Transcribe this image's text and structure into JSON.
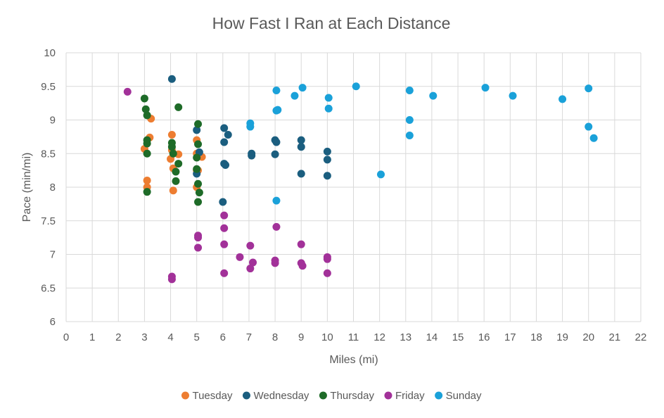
{
  "chart_data": {
    "type": "scatter",
    "title": "How Fast I Ran at Each Distance",
    "xlabel": "Miles (mi)",
    "ylabel": "Pace (min/mi)",
    "xlim": [
      0,
      22
    ],
    "ylim": [
      6,
      10
    ],
    "x_ticks": [
      "0",
      "1",
      "2",
      "3",
      "4",
      "5",
      "6",
      "7",
      "8",
      "9",
      "10",
      "11",
      "12",
      "13",
      "14",
      "15",
      "16",
      "17",
      "18",
      "19",
      "20",
      "21",
      "22"
    ],
    "y_ticks": [
      "6",
      "6.5",
      "7",
      "7.5",
      "8",
      "8.5",
      "9",
      "9.5",
      "10"
    ],
    "grid": true,
    "legend_position": "bottom",
    "series": [
      {
        "name": "Tuesday",
        "color": "#ED7D31",
        "points": [
          [
            3.0,
            8.57
          ],
          [
            3.1,
            8.1
          ],
          [
            3.1,
            8.0
          ],
          [
            3.2,
            8.74
          ],
          [
            3.25,
            9.02
          ],
          [
            4.05,
            8.78
          ],
          [
            4.05,
            8.55
          ],
          [
            4.0,
            8.42
          ],
          [
            4.1,
            8.28
          ],
          [
            4.1,
            7.95
          ],
          [
            4.3,
            8.49
          ],
          [
            5.0,
            8.7
          ],
          [
            5.0,
            8.5
          ],
          [
            5.0,
            8.25
          ],
          [
            5.0,
            8.0
          ],
          [
            5.2,
            8.45
          ],
          [
            5.05,
            8.25
          ]
        ]
      },
      {
        "name": "Wednesday",
        "color": "#1B5E7F",
        "points": [
          [
            4.05,
            9.61
          ],
          [
            5.0,
            8.85
          ],
          [
            5.1,
            8.52
          ],
          [
            5.0,
            8.2
          ],
          [
            6.05,
            8.88
          ],
          [
            6.2,
            8.78
          ],
          [
            6.05,
            8.67
          ],
          [
            6.05,
            8.35
          ],
          [
            6.1,
            8.33
          ],
          [
            6.0,
            7.78
          ],
          [
            7.1,
            8.5
          ],
          [
            7.1,
            8.47
          ],
          [
            8.0,
            8.7
          ],
          [
            8.05,
            8.67
          ],
          [
            8.0,
            8.49
          ],
          [
            9.0,
            8.7
          ],
          [
            9.0,
            8.6
          ],
          [
            9.0,
            8.2
          ],
          [
            10.0,
            8.53
          ],
          [
            10.0,
            8.41
          ],
          [
            10.0,
            8.17
          ]
        ]
      },
      {
        "name": "Thursday",
        "color": "#1E6B28",
        "points": [
          [
            3.0,
            9.32
          ],
          [
            3.05,
            9.16
          ],
          [
            3.1,
            9.07
          ],
          [
            3.1,
            8.7
          ],
          [
            3.1,
            8.65
          ],
          [
            3.1,
            8.5
          ],
          [
            3.1,
            7.93
          ],
          [
            4.05,
            8.66
          ],
          [
            4.05,
            8.6
          ],
          [
            4.1,
            8.5
          ],
          [
            4.2,
            8.23
          ],
          [
            4.2,
            8.09
          ],
          [
            4.3,
            9.19
          ],
          [
            4.3,
            8.35
          ],
          [
            5.05,
            8.94
          ],
          [
            5.05,
            8.64
          ],
          [
            5.0,
            8.44
          ],
          [
            5.0,
            8.27
          ],
          [
            5.05,
            8.05
          ],
          [
            5.1,
            7.92
          ],
          [
            5.05,
            7.78
          ]
        ]
      },
      {
        "name": "Friday",
        "color": "#A23199",
        "points": [
          [
            2.35,
            9.42
          ],
          [
            4.05,
            6.67
          ],
          [
            4.05,
            6.63
          ],
          [
            5.05,
            7.28
          ],
          [
            5.05,
            7.25
          ],
          [
            5.05,
            7.1
          ],
          [
            6.05,
            7.58
          ],
          [
            6.05,
            7.39
          ],
          [
            6.05,
            7.15
          ],
          [
            6.05,
            6.72
          ],
          [
            6.65,
            6.96
          ],
          [
            7.05,
            7.13
          ],
          [
            7.05,
            6.79
          ],
          [
            7.15,
            6.88
          ],
          [
            8.0,
            6.91
          ],
          [
            8.0,
            6.87
          ],
          [
            8.05,
            7.41
          ],
          [
            9.0,
            7.15
          ],
          [
            9.0,
            6.87
          ],
          [
            9.05,
            6.83
          ],
          [
            10.0,
            6.96
          ],
          [
            10.0,
            6.93
          ],
          [
            10.0,
            6.72
          ]
        ]
      },
      {
        "name": "Sunday",
        "color": "#1AA1D9",
        "points": [
          [
            7.05,
            8.95
          ],
          [
            7.05,
            8.9
          ],
          [
            8.05,
            9.44
          ],
          [
            8.1,
            9.15
          ],
          [
            8.05,
            9.14
          ],
          [
            8.05,
            7.8
          ],
          [
            8.75,
            9.36
          ],
          [
            9.05,
            9.48
          ],
          [
            10.05,
            9.33
          ],
          [
            10.05,
            9.17
          ],
          [
            11.1,
            9.5
          ],
          [
            12.05,
            8.19
          ],
          [
            13.15,
            9.44
          ],
          [
            13.15,
            9.0
          ],
          [
            13.15,
            8.77
          ],
          [
            14.05,
            9.36
          ],
          [
            16.05,
            9.48
          ],
          [
            17.1,
            9.36
          ],
          [
            19.0,
            9.31
          ],
          [
            20.0,
            9.47
          ],
          [
            20.0,
            8.9
          ],
          [
            20.2,
            8.73
          ]
        ]
      }
    ]
  }
}
